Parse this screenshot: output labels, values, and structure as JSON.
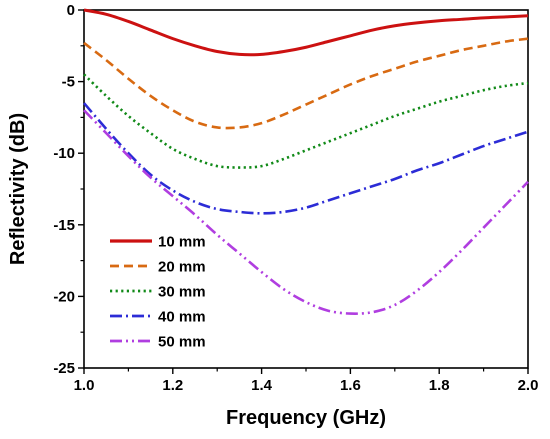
{
  "chart_data": {
    "type": "line",
    "title": "",
    "xlabel": "Frequency (GHz)",
    "ylabel": "Reflectivity (dB)",
    "xlim": [
      1.0,
      2.0
    ],
    "ylim": [
      -25,
      0
    ],
    "xticks": [
      "1.0",
      "1.2",
      "1.4",
      "1.6",
      "1.8",
      "2.0"
    ],
    "yticks": [
      "0",
      "-5",
      "-10",
      "-15",
      "-20",
      "-25"
    ],
    "grid": false,
    "legend_position": "bottom-left",
    "x": [
      1.0,
      1.05,
      1.1,
      1.15,
      1.2,
      1.25,
      1.3,
      1.35,
      1.4,
      1.45,
      1.5,
      1.55,
      1.6,
      1.65,
      1.7,
      1.75,
      1.8,
      1.85,
      1.9,
      1.95,
      2.0
    ],
    "series": [
      {
        "name": "10 mm",
        "color": "#cc1111",
        "dash": "solid",
        "values": [
          0,
          -0.3,
          -0.8,
          -1.4,
          -2.0,
          -2.5,
          -2.9,
          -3.1,
          -3.1,
          -2.9,
          -2.6,
          -2.2,
          -1.8,
          -1.4,
          -1.1,
          -0.9,
          -0.75,
          -0.65,
          -0.55,
          -0.48,
          -0.4
        ]
      },
      {
        "name": "20 mm",
        "color": "#d86a12",
        "dash": "dashed",
        "values": [
          -2.3,
          -3.5,
          -4.8,
          -6.0,
          -7.0,
          -7.8,
          -8.2,
          -8.2,
          -7.9,
          -7.3,
          -6.6,
          -5.9,
          -5.2,
          -4.6,
          -4.1,
          -3.6,
          -3.2,
          -2.8,
          -2.5,
          -2.2,
          -2.0
        ]
      },
      {
        "name": "30 mm",
        "color": "#118a18",
        "dash": "dotted",
        "values": [
          -4.5,
          -6.0,
          -7.4,
          -8.6,
          -9.7,
          -10.4,
          -10.9,
          -11.0,
          -10.9,
          -10.4,
          -9.8,
          -9.2,
          -8.6,
          -8.0,
          -7.4,
          -6.9,
          -6.4,
          -6.0,
          -5.6,
          -5.3,
          -5.1
        ]
      },
      {
        "name": "40 mm",
        "color": "#2c2cd6",
        "dash": "dashdot",
        "values": [
          -6.5,
          -8.3,
          -10.0,
          -11.5,
          -12.6,
          -13.4,
          -13.9,
          -14.1,
          -14.2,
          -14.1,
          -13.8,
          -13.3,
          -12.8,
          -12.3,
          -11.8,
          -11.2,
          -10.7,
          -10.1,
          -9.5,
          -9.0,
          -8.5
        ]
      },
      {
        "name": "50 mm",
        "color": "#b03ee0",
        "dash": "dashdotdot",
        "values": [
          -7.0,
          -8.6,
          -10.2,
          -11.7,
          -13.0,
          -14.3,
          -15.7,
          -17.0,
          -18.3,
          -19.5,
          -20.4,
          -21.0,
          -21.2,
          -21.1,
          -20.6,
          -19.6,
          -18.3,
          -16.8,
          -15.2,
          -13.6,
          -12.0
        ]
      }
    ]
  }
}
